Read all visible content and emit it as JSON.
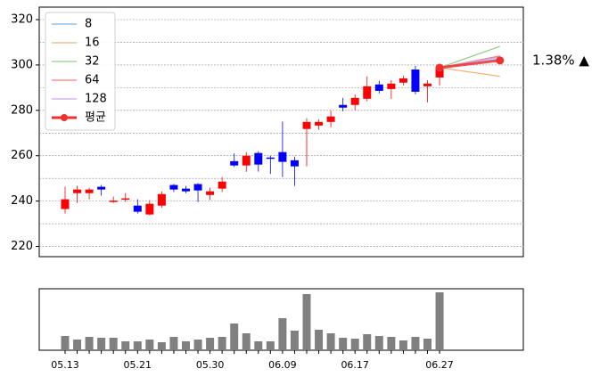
{
  "chart_data": [
    {
      "type": "candlestick",
      "open": [
        236.5,
        243.5,
        243.5,
        246.3,
        239.6,
        240.8,
        238.0,
        234.1,
        238.0,
        247.1,
        245.5,
        247.5,
        242.7,
        245.5,
        257.6,
        255.7,
        261.2,
        259.2,
        261.6,
        258.0,
        271.8,
        273.3,
        274.9,
        282.4,
        282.4,
        285.1,
        291.4,
        289.4,
        292.2,
        298.0,
        290.6,
        294.5,
        null,
        null,
        null,
        null,
        null
      ],
      "high": [
        246.3,
        246.7,
        245.9,
        247.1,
        242.0,
        243.5,
        240.8,
        240.4,
        244.3,
        247.5,
        246.7,
        247.9,
        245.9,
        250.6,
        261.0,
        261.6,
        262.0,
        260.0,
        275.0,
        259.6,
        276.5,
        276.1,
        280.0,
        285.5,
        287.0,
        295.0,
        293.0,
        293.3,
        295.3,
        299.6,
        293.3,
        300.0,
        null,
        null,
        null,
        null,
        null
      ],
      "low": [
        234.5,
        239.2,
        240.8,
        242.4,
        239.2,
        239.6,
        234.5,
        233.7,
        237.0,
        244.0,
        243.5,
        239.6,
        240.4,
        244.0,
        255.0,
        252.9,
        253.0,
        252.0,
        250.6,
        246.7,
        255.3,
        271.4,
        272.5,
        279.6,
        280.0,
        284.0,
        287.5,
        285.0,
        291.0,
        287.1,
        283.5,
        291.0,
        null,
        null,
        null,
        null,
        null
      ],
      "close": [
        240.8,
        245.1,
        245.1,
        245.1,
        240.2,
        241.2,
        235.3,
        238.8,
        243.1,
        245.1,
        244.3,
        244.7,
        244.3,
        248.6,
        255.7,
        260.0,
        256.1,
        258.8,
        257.3,
        255.3,
        274.9,
        274.9,
        277.3,
        281.2,
        285.5,
        290.6,
        288.6,
        291.8,
        294.1,
        288.2,
        291.8,
        299.2,
        null,
        null,
        null,
        null,
        null
      ],
      "up_color": "#ff0000",
      "down_color": "#0000ff",
      "series": [
        {
          "name": "8",
          "color": "#7fb0e6",
          "values": [
            null,
            null,
            null,
            null,
            null,
            null,
            null,
            null,
            null,
            null,
            null,
            null,
            null,
            null,
            null,
            null,
            null,
            null,
            null,
            null,
            null,
            null,
            null,
            null,
            null,
            null,
            null,
            null,
            null,
            null,
            null,
            298.8,
            null,
            null,
            null,
            null,
            302.7
          ]
        },
        {
          "name": "16",
          "color": "#f5b27a",
          "values": [
            null,
            null,
            null,
            null,
            null,
            null,
            null,
            null,
            null,
            null,
            null,
            null,
            null,
            null,
            null,
            null,
            null,
            null,
            null,
            null,
            null,
            null,
            null,
            null,
            null,
            null,
            null,
            null,
            null,
            null,
            null,
            298.8,
            null,
            null,
            null,
            null,
            295.0
          ]
        },
        {
          "name": "32",
          "color": "#8fcf86",
          "values": [
            null,
            null,
            null,
            null,
            null,
            null,
            null,
            null,
            null,
            null,
            null,
            null,
            null,
            null,
            null,
            null,
            null,
            null,
            null,
            null,
            null,
            null,
            null,
            null,
            null,
            null,
            null,
            null,
            null,
            null,
            null,
            298.8,
            null,
            null,
            null,
            null,
            308.2
          ]
        },
        {
          "name": "64",
          "color": "#f08080",
          "values": [
            null,
            null,
            null,
            null,
            null,
            null,
            null,
            null,
            null,
            null,
            null,
            null,
            null,
            null,
            null,
            null,
            null,
            null,
            null,
            null,
            null,
            null,
            null,
            null,
            null,
            null,
            null,
            null,
            null,
            null,
            null,
            298.8,
            null,
            null,
            null,
            null,
            304.0
          ]
        },
        {
          "name": "128",
          "color": "#c6a6f2",
          "values": [
            null,
            null,
            null,
            null,
            null,
            null,
            null,
            null,
            null,
            null,
            null,
            null,
            null,
            null,
            null,
            null,
            null,
            null,
            null,
            null,
            null,
            null,
            null,
            null,
            null,
            null,
            null,
            null,
            null,
            null,
            null,
            298.8,
            null,
            null,
            null,
            null,
            303.5
          ]
        },
        {
          "name": "평균",
          "color": "#f03030",
          "values": [
            null,
            null,
            null,
            null,
            null,
            null,
            null,
            null,
            null,
            null,
            null,
            null,
            null,
            null,
            null,
            null,
            null,
            null,
            null,
            null,
            null,
            null,
            null,
            null,
            null,
            null,
            null,
            null,
            null,
            null,
            null,
            298.8,
            null,
            null,
            null,
            null,
            302.0
          ]
        }
      ],
      "ylim": [
        215.5,
        325.5
      ],
      "yticks": [
        220,
        240,
        260,
        280,
        300,
        320
      ],
      "ygrid": [
        220,
        230,
        240,
        250,
        260,
        270,
        280,
        290,
        300,
        310,
        320
      ],
      "legend": "upper left",
      "annotation": "1.38% ▲",
      "annotation_color": "#ff0000"
    },
    {
      "type": "bar",
      "categories": [
        "05.13",
        null,
        null,
        null,
        null,
        null,
        "05.21",
        null,
        null,
        null,
        null,
        null,
        "05.30",
        null,
        null,
        null,
        null,
        null,
        "06.09",
        null,
        null,
        null,
        null,
        null,
        "06.17",
        null,
        null,
        null,
        null,
        null,
        null,
        "06.27",
        null,
        null,
        null,
        null,
        null
      ],
      "values": [
        16,
        12,
        15,
        14,
        14,
        10,
        10,
        12,
        9,
        15,
        10,
        12,
        14,
        15,
        30,
        19,
        10,
        10,
        36,
        22,
        63,
        23,
        19,
        14,
        13,
        18,
        16,
        15,
        11,
        15,
        13,
        65,
        null,
        null,
        null,
        null,
        null
      ],
      "color": "#808080",
      "ylim": [
        0,
        69
      ]
    }
  ]
}
